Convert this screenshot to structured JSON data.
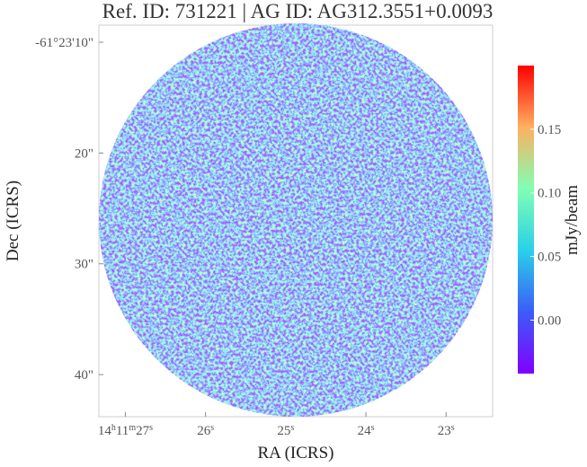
{
  "chart_data": {
    "type": "image",
    "title": "Ref. ID: 731221 | AG ID: AG312.3551+0.0093",
    "x_label": "RA (ICRS)",
    "y_label": "Dec (ICRS)",
    "colorbar_label": "mJy/beam",
    "xlim": [
      27.33,
      22.42
    ],
    "xticks": [
      {
        "value": 27,
        "label": "14h11m27s"
      },
      {
        "value": 26,
        "label": "26s"
      },
      {
        "value": 25,
        "label": "25s"
      },
      {
        "value": 24,
        "label": "24s"
      },
      {
        "value": 23,
        "label": "23s"
      }
    ],
    "ylim": [
      8.46,
      43.8
    ],
    "yticks": [
      {
        "value": 10,
        "label": "-61°23'10\""
      },
      {
        "value": 20,
        "label": "20\""
      },
      {
        "value": 30,
        "label": "30\""
      },
      {
        "value": 40,
        "label": "40\""
      }
    ],
    "clim": [
      -0.042,
      0.2
    ],
    "cticks": [
      {
        "value": 0,
        "label": "0.00"
      },
      {
        "value": 0.05,
        "label": "0.05"
      },
      {
        "value": 0.1,
        "label": "0.10"
      },
      {
        "value": 0.15,
        "label": "0.15"
      }
    ],
    "colormap": "rainbow"
  }
}
